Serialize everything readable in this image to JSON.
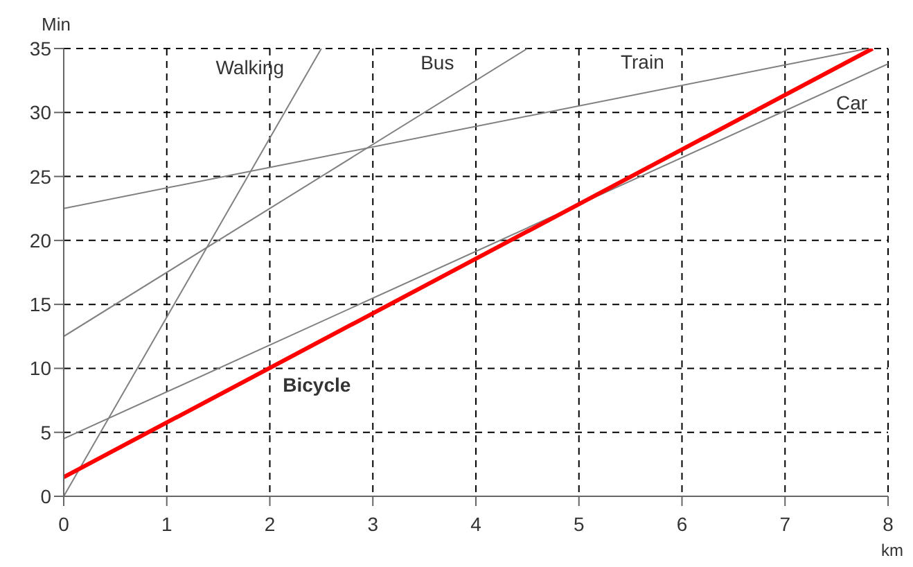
{
  "chart_data": {
    "type": "line",
    "xlabel": "km",
    "ylabel": "Min",
    "xlim": [
      0,
      8
    ],
    "xticks": [
      0,
      1,
      2,
      3,
      4,
      5,
      6,
      7,
      8
    ],
    "ylim": [
      0,
      35
    ],
    "yticks": [
      0,
      5,
      10,
      15,
      20,
      25,
      30,
      35
    ],
    "grid": true,
    "line_style": "solid",
    "marker": "none",
    "series": [
      {
        "name": "Walking",
        "color": "#808080",
        "x": [
          0,
          2.5
        ],
        "values": [
          0,
          35
        ]
      },
      {
        "name": "Bus",
        "color": "#808080",
        "x": [
          0,
          4.5
        ],
        "values": [
          12.5,
          35
        ]
      },
      {
        "name": "Train",
        "color": "#808080",
        "x": [
          0,
          7.8
        ],
        "values": [
          22.5,
          35
        ]
      },
      {
        "name": "Car",
        "color": "#808080",
        "x": [
          0,
          8
        ],
        "values": [
          4.5,
          33.8
        ]
      },
      {
        "name": "Bicycle",
        "color": "#ff0000",
        "x": [
          0,
          7.85
        ],
        "values": [
          1.5,
          35
        ]
      }
    ]
  }
}
